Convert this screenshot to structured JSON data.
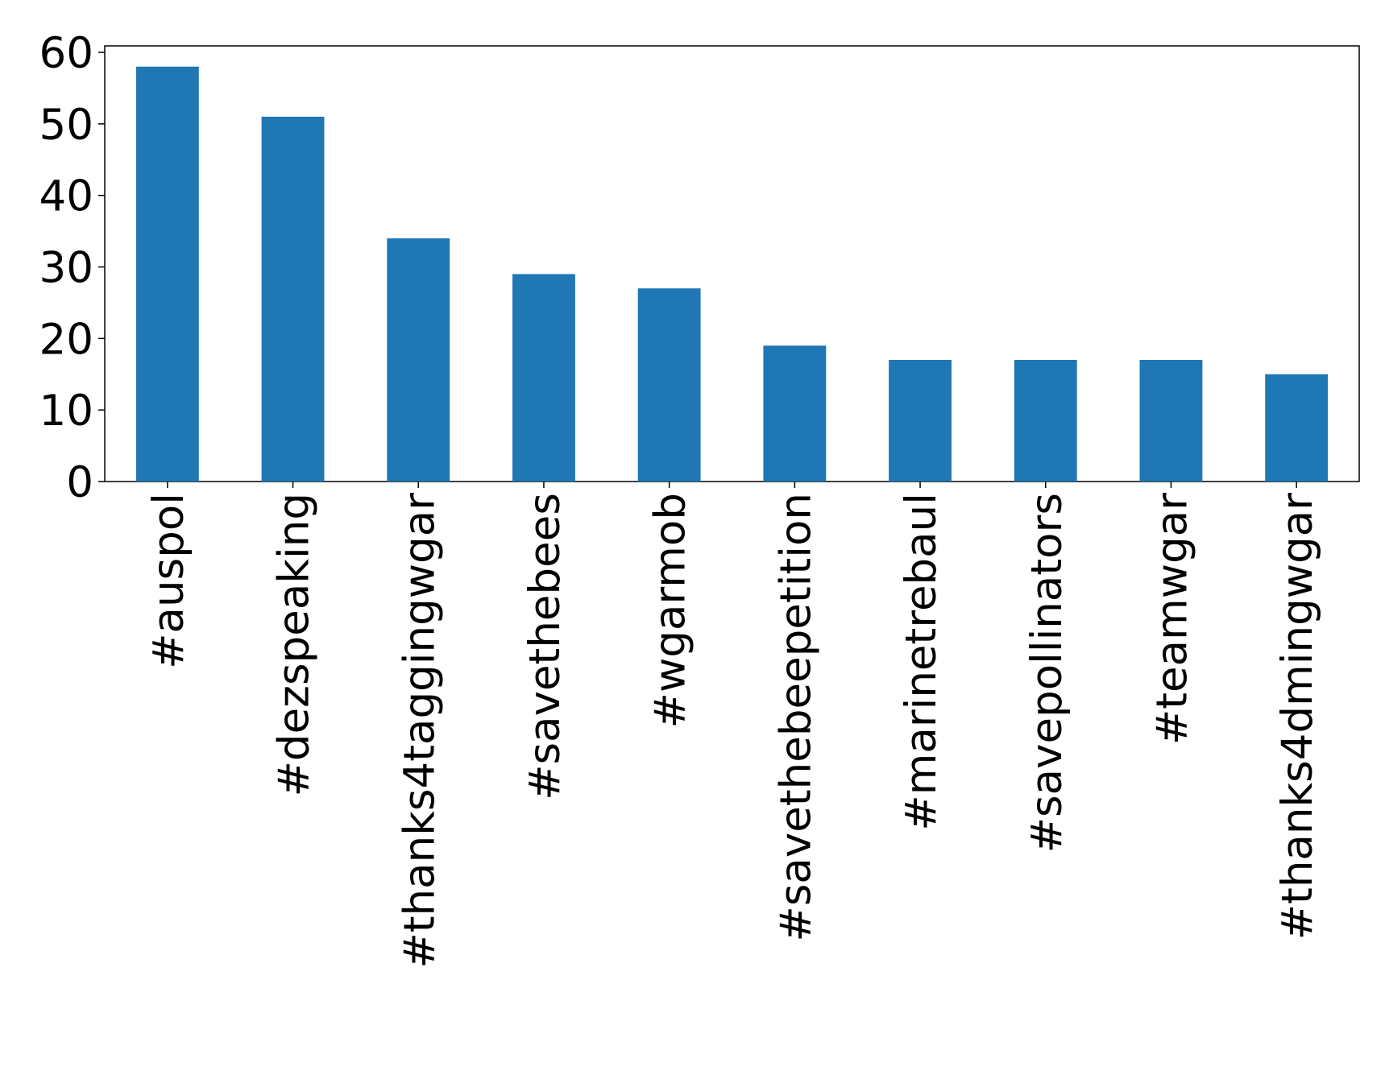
{
  "chart_data": {
    "type": "bar",
    "categories": [
      "#auspol",
      "#dezspeaking",
      "#thanks4taggingwgar",
      "#savethebees",
      "#wgarmob",
      "#savethebeepetition",
      "#marinetrebaul",
      "#savepollinators",
      "#teamwgar",
      "#thanks4dmingwgar"
    ],
    "values": [
      58,
      51,
      34,
      29,
      27,
      19,
      17,
      17,
      17,
      15
    ],
    "color": "#1f77b4",
    "ylim": [
      0,
      60.9
    ],
    "yticks": [
      0,
      10,
      20,
      30,
      40,
      50,
      60
    ],
    "grid": false
  }
}
